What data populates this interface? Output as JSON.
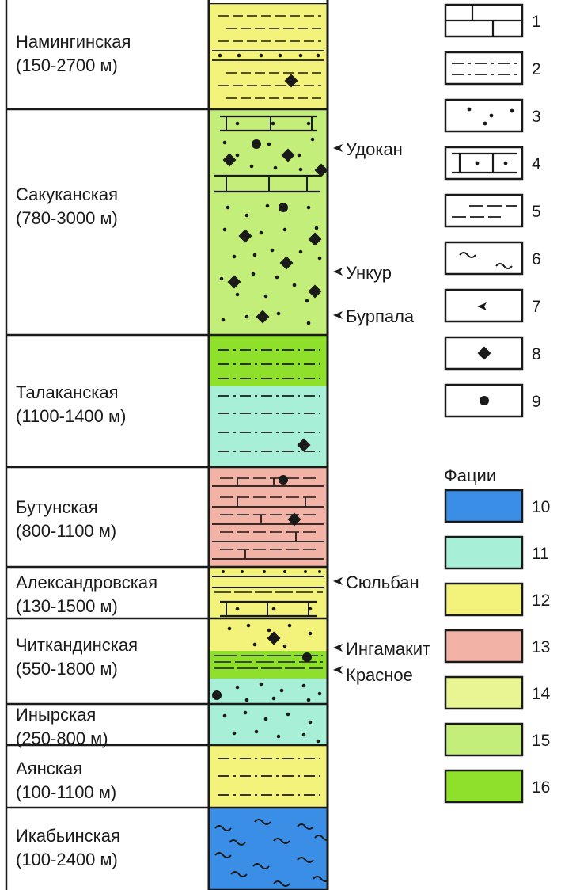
{
  "formations": [
    {
      "name": "Намингинская",
      "thickness": "(150-2700 м)"
    },
    {
      "name": "Сакуканская",
      "thickness": "(780-3000 м)"
    },
    {
      "name": "Талаканская",
      "thickness": "(1100-1400 м)"
    },
    {
      "name": "Бутунская",
      "thickness": "(800-1100 м)"
    },
    {
      "name": "Александровская",
      "thickness": "(130-1500 м)"
    },
    {
      "name": "Читкандинская",
      "thickness": "(550-1800 м)"
    },
    {
      "name": "Инырская",
      "thickness": "(250-800 м)"
    },
    {
      "name": "Аянская",
      "thickness": "(100-1100 м)"
    },
    {
      "name": "Икабьинская",
      "thickness": "(100-2400 м)"
    }
  ],
  "ore_markers": [
    {
      "label": "Удокан"
    },
    {
      "label": "Ункур"
    },
    {
      "label": "Бурпала"
    },
    {
      "label": "Сюльбан"
    },
    {
      "label": "Ингамакит"
    },
    {
      "label": "Красное"
    }
  ],
  "lithology_legend": [
    {
      "num": "1",
      "pattern": "limestone"
    },
    {
      "num": "2",
      "pattern": "dash-dot"
    },
    {
      "num": "3",
      "pattern": "dots"
    },
    {
      "num": "4",
      "pattern": "sandy-limestone"
    },
    {
      "num": "5",
      "pattern": "dashes"
    },
    {
      "num": "6",
      "pattern": "waves"
    },
    {
      "num": "7",
      "pattern": "arrow-marker"
    },
    {
      "num": "8",
      "pattern": "diamond"
    },
    {
      "num": "9",
      "pattern": "circle"
    }
  ],
  "facies_title": "Фации",
  "facies_legend": [
    {
      "num": "10",
      "color": "#3a8ee6"
    },
    {
      "num": "11",
      "color": "#a8efd8"
    },
    {
      "num": "12",
      "color": "#f3f27a"
    },
    {
      "num": "13",
      "color": "#f2b2a6"
    },
    {
      "num": "14",
      "color": "#e9f592"
    },
    {
      "num": "15",
      "color": "#c4ee7a"
    },
    {
      "num": "16",
      "color": "#8ee02a"
    }
  ]
}
